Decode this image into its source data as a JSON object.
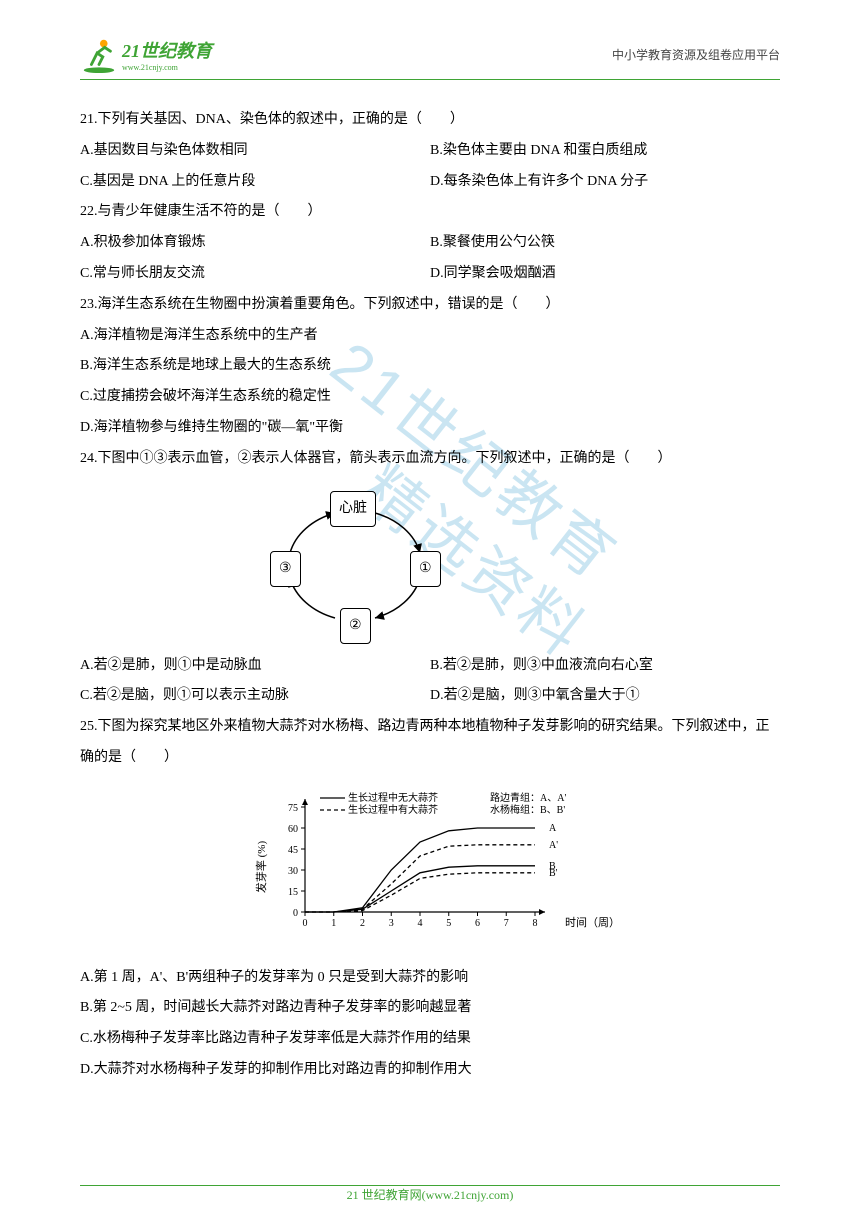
{
  "header": {
    "logo_main": "21世纪教育",
    "logo_sub": "www.21cnjy.com",
    "right_text": "中小学教育资源及组卷应用平台"
  },
  "watermark": {
    "line1": "21世纪教育",
    "line2": "精选资料"
  },
  "questions": {
    "q21": {
      "stem": "21.下列有关基因、DNA、染色体的叙述中，正确的是（　　）",
      "A": "A.基因数目与染色体数相同",
      "B": "B.染色体主要由 DNA 和蛋白质组成",
      "C": "C.基因是 DNA 上的任意片段",
      "D": "D.每条染色体上有许多个 DNA 分子"
    },
    "q22": {
      "stem": "22.与青少年健康生活不符的是（　　）",
      "A": "A.积极参加体育锻炼",
      "B": "B.聚餐使用公勺公筷",
      "C": "C.常与师长朋友交流",
      "D": "D.同学聚会吸烟酗酒"
    },
    "q23": {
      "stem": "23.海洋生态系统在生物圈中扮演着重要角色。下列叙述中，错误的是（　　）",
      "A": "A.海洋植物是海洋生态系统中的生产者",
      "B": "B.海洋生态系统是地球上最大的生态系统",
      "C": "C.过度捕捞会破坏海洋生态系统的稳定性",
      "D": "D.海洋植物参与维持生物圈的\"碳—氧\"平衡"
    },
    "q24": {
      "stem": "24.下图中①③表示血管，②表示人体器官，箭头表示血流方向。下列叙述中，正确的是（　　）",
      "A": "A.若②是肺，则①中是动脉血",
      "B": "B.若②是肺，则③中血液流向右心室",
      "C": "C.若②是脑，则①可以表示主动脉",
      "D": "D.若②是脑，则③中氧含量大于①"
    },
    "q25": {
      "stem": "25.下图为探究某地区外来植物大蒜芥对水杨梅、路边青两种本地植物种子发芽影响的研究结果。下列叙述中，正确的是（　　）",
      "A": "A.第 1 周，A'、B'两组种子的发芽率为 0 只是受到大蒜芥的影响",
      "B": "B.第 2~5 周，时间越长大蒜芥对路边青种子发芽率的影响越显著",
      "C": "C.水杨梅种子发芽率比路边青种子发芽率低是大蒜芥作用的结果",
      "D": "D.大蒜芥对水杨梅种子发芽的抑制作用比对路边青的抑制作用大"
    }
  },
  "diagram24": {
    "heart": "心脏",
    "node1": "①",
    "node2": "②",
    "node3": "③"
  },
  "chart25": {
    "legend_solid": "生长过程中无大蒜芥",
    "legend_dash": "生长过程中有大蒜芥",
    "legend_group_A": "路边青组：A、A'",
    "legend_group_B": "水杨梅组：B、B'",
    "ylabel": "发芽率 (%)",
    "xlabel": "时间（周）",
    "yticks": [
      0,
      15,
      30,
      45,
      60,
      75
    ],
    "xticks": [
      0,
      1,
      2,
      3,
      4,
      5,
      6,
      7,
      8
    ],
    "series": {
      "A": {
        "label": "A",
        "values": [
          0,
          0,
          3,
          30,
          50,
          58,
          60,
          60,
          60
        ],
        "dash": false
      },
      "Ap": {
        "label": "A'",
        "values": [
          0,
          0,
          2,
          20,
          40,
          47,
          48,
          48,
          48
        ],
        "dash": true
      },
      "B": {
        "label": "B",
        "values": [
          0,
          0,
          2,
          15,
          28,
          32,
          33,
          33,
          33
        ],
        "dash": false
      },
      "Bp": {
        "label": "B'",
        "values": [
          0,
          0,
          1,
          12,
          24,
          27,
          28,
          28,
          28
        ],
        "dash": true
      }
    },
    "line_color": "#000000",
    "bg_color": "#ffffff"
  },
  "footer": {
    "text": "21 世纪教育网(www.21cnjy.com)"
  }
}
